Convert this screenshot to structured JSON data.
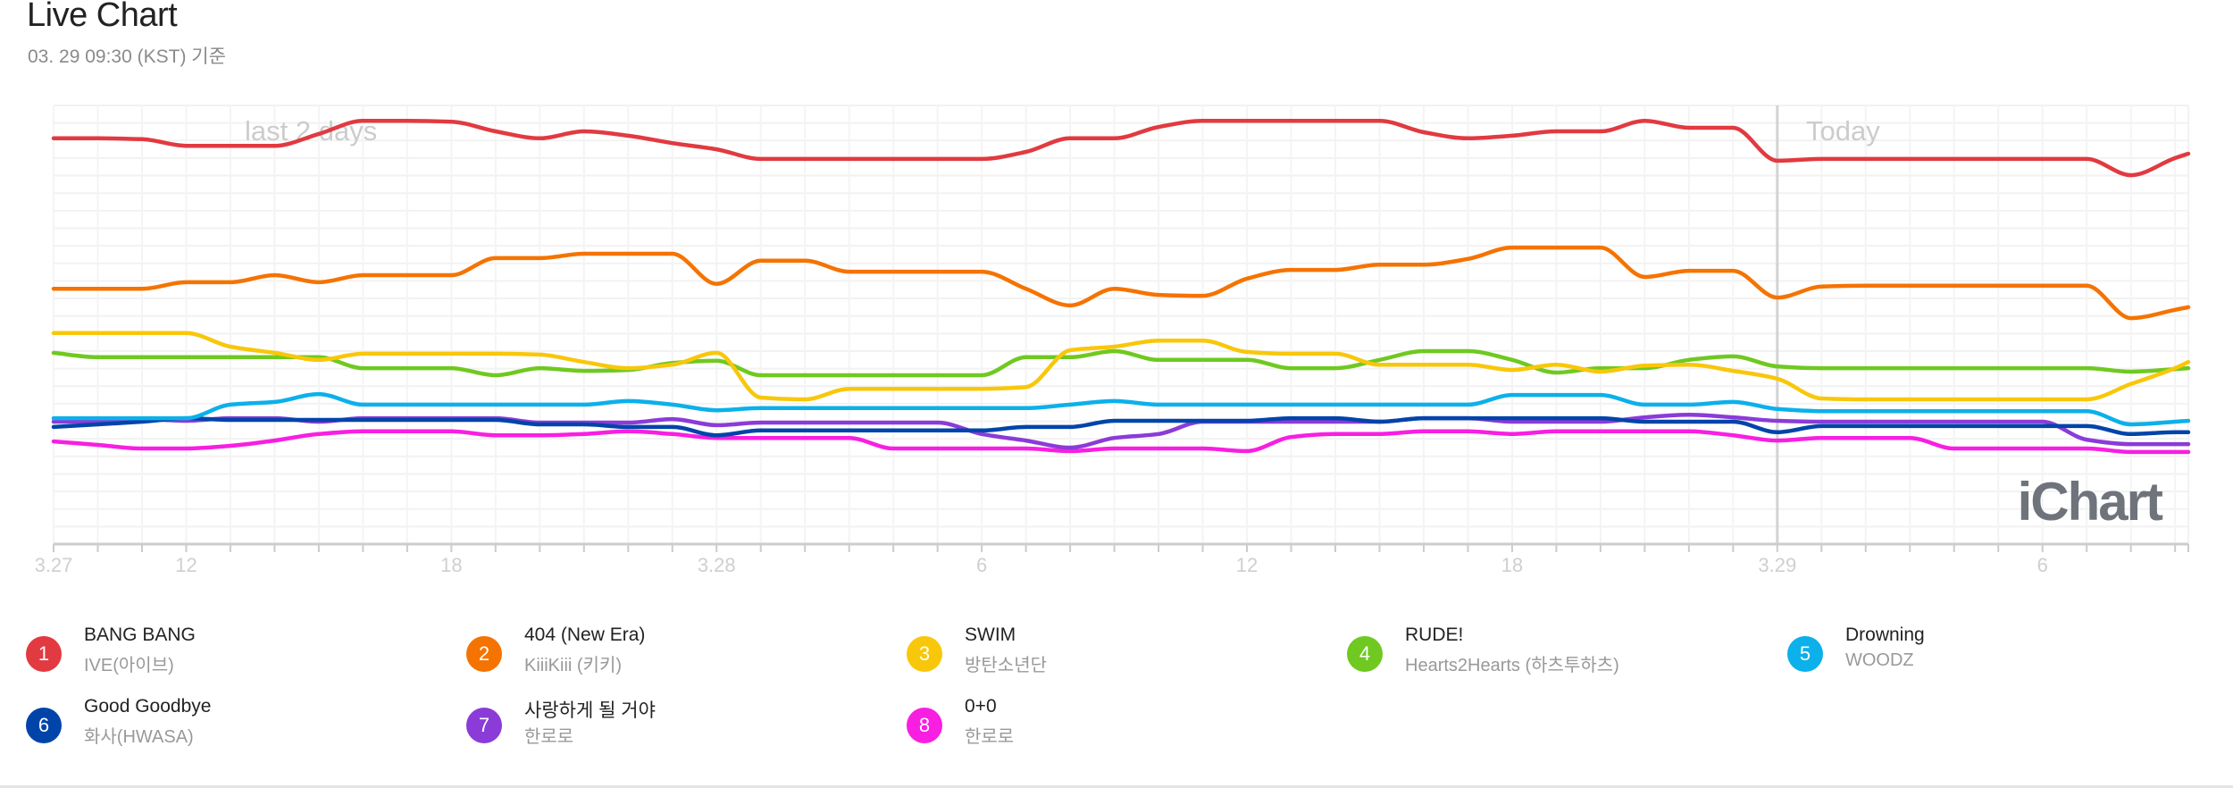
{
  "header": {
    "title": "Live Chart",
    "subtitle": "03. 29 09:30 (KST) 기준"
  },
  "logo": {
    "text": "iChart"
  },
  "chart_data": {
    "type": "line",
    "title": "Live Chart",
    "xlabel": "",
    "ylabel": "",
    "grid": true,
    "xlim": [
      0,
      48.3
    ],
    "ylim": [
      0,
      100
    ],
    "x": [
      0,
      1,
      2,
      3,
      4,
      5,
      6,
      7,
      8,
      9,
      10,
      11,
      12,
      13,
      14,
      15,
      16,
      17,
      18,
      19,
      20,
      21,
      22,
      23,
      24,
      25,
      26,
      27,
      28,
      29,
      30,
      31,
      32,
      33,
      34,
      35,
      36,
      37,
      38,
      39,
      40,
      41,
      42,
      43,
      44,
      45,
      46,
      47,
      48,
      48.3
    ],
    "xticks": [
      {
        "x": 0,
        "label": "3.27"
      },
      {
        "x": 3,
        "label": "12"
      },
      {
        "x": 9,
        "label": "18"
      },
      {
        "x": 15,
        "label": "3.28"
      },
      {
        "x": 21,
        "label": "6"
      },
      {
        "x": 27,
        "label": "12"
      },
      {
        "x": 33,
        "label": "18"
      },
      {
        "x": 39,
        "label": "3.29"
      },
      {
        "x": 45,
        "label": "6"
      }
    ],
    "annotations": [
      {
        "label": "last 2 days"
      },
      {
        "label": "Today",
        "x": 39
      }
    ],
    "legend_position": "bottom",
    "series": [
      {
        "rank": "1",
        "name": "BANG BANG",
        "artist": "IVE(아이브)",
        "color": "#e13a40",
        "values": [
          92.5,
          92.5,
          92.3,
          90.8,
          90.8,
          90.8,
          93.5,
          96.5,
          96.5,
          96.3,
          94.1,
          92.5,
          94.1,
          93.1,
          91.4,
          90.0,
          87.8,
          87.8,
          87.8,
          87.8,
          87.8,
          87.8,
          89.4,
          92.5,
          92.5,
          95.1,
          96.5,
          96.5,
          96.5,
          96.5,
          96.5,
          93.9,
          92.5,
          93.1,
          94.1,
          94.1,
          96.5,
          94.9,
          94.9,
          87.4,
          87.8,
          87.8,
          87.8,
          87.8,
          87.8,
          87.8,
          87.8,
          84.1,
          88.0,
          89.0
        ]
      },
      {
        "rank": "2",
        "name": "404 (New Era)",
        "artist": "KiiiKiii (키키)",
        "color": "#f57300",
        "values": [
          58.2,
          58.2,
          58.2,
          59.7,
          59.7,
          61.3,
          59.7,
          61.3,
          61.3,
          61.3,
          65.2,
          65.2,
          66.2,
          66.2,
          66.2,
          59.3,
          64.6,
          64.6,
          62.1,
          62.1,
          62.1,
          62.1,
          58.2,
          54.4,
          58.2,
          56.8,
          56.6,
          60.5,
          62.5,
          62.5,
          63.7,
          63.7,
          65.0,
          67.6,
          67.6,
          67.6,
          60.9,
          62.3,
          62.3,
          56.2,
          58.7,
          58.9,
          58.9,
          58.9,
          58.9,
          58.9,
          58.9,
          51.5,
          53.4,
          54.0
        ]
      },
      {
        "rank": "3",
        "name": "SWIM",
        "artist": "방탄소년단",
        "color": "#f8c70a",
        "values": [
          48.1,
          48.1,
          48.1,
          48.1,
          45.0,
          43.6,
          42.0,
          43.4,
          43.4,
          43.4,
          43.4,
          43.2,
          41.5,
          40.1,
          40.9,
          43.6,
          33.4,
          33.0,
          35.4,
          35.4,
          35.4,
          35.4,
          35.8,
          44.2,
          45.0,
          46.4,
          46.4,
          43.8,
          43.4,
          43.4,
          40.9,
          40.9,
          40.9,
          39.7,
          40.9,
          39.3,
          40.7,
          40.9,
          39.5,
          37.7,
          33.2,
          33.0,
          33.0,
          33.0,
          33.0,
          33.0,
          33.0,
          36.5,
          40.1,
          41.5
        ]
      },
      {
        "rank": "4",
        "name": "RUDE!",
        "artist": "Hearts2Hearts (하츠투하츠)",
        "color": "#6fc920",
        "values": [
          43.6,
          42.6,
          42.6,
          42.6,
          42.6,
          42.6,
          42.6,
          40.1,
          40.1,
          40.1,
          38.5,
          40.1,
          39.5,
          39.7,
          41.3,
          41.8,
          38.5,
          38.5,
          38.5,
          38.5,
          38.5,
          38.5,
          42.6,
          42.6,
          44.0,
          42.0,
          42.0,
          42.0,
          40.1,
          40.1,
          42.0,
          44.0,
          44.0,
          42.0,
          39.1,
          40.1,
          40.1,
          42.0,
          42.8,
          40.5,
          40.1,
          40.1,
          40.1,
          40.1,
          40.1,
          40.1,
          40.1,
          39.3,
          39.9,
          40.1
        ]
      },
      {
        "rank": "5",
        "name": "Drowning",
        "artist": "WOODZ",
        "color": "#0cb0ea",
        "values": [
          28.7,
          28.7,
          28.7,
          28.7,
          31.8,
          32.4,
          34.2,
          31.8,
          31.8,
          31.8,
          31.8,
          31.8,
          31.8,
          32.6,
          31.8,
          30.5,
          31.0,
          31.0,
          31.0,
          31.0,
          31.0,
          31.0,
          31.0,
          31.8,
          32.6,
          31.8,
          31.8,
          31.8,
          31.8,
          31.8,
          31.8,
          31.8,
          31.8,
          34.0,
          34.0,
          34.0,
          31.8,
          31.8,
          32.4,
          30.8,
          30.3,
          30.3,
          30.3,
          30.3,
          30.3,
          30.3,
          30.3,
          27.3,
          27.9,
          28.1
        ]
      },
      {
        "rank": "6",
        "name": "Good Goodbye",
        "artist": "화사(HWASA)",
        "color": "#0044aa",
        "values": [
          26.7,
          27.3,
          27.9,
          28.7,
          28.3,
          28.3,
          28.3,
          28.3,
          28.3,
          28.3,
          28.3,
          27.3,
          27.3,
          26.7,
          26.7,
          24.8,
          25.9,
          25.9,
          25.9,
          25.9,
          25.9,
          25.9,
          26.7,
          26.7,
          28.1,
          28.1,
          28.1,
          28.1,
          28.7,
          28.7,
          27.9,
          28.7,
          28.7,
          28.7,
          28.7,
          28.7,
          27.9,
          27.9,
          27.9,
          25.5,
          26.9,
          26.9,
          26.9,
          26.9,
          26.9,
          26.9,
          26.9,
          25.1,
          25.5,
          25.5
        ]
      },
      {
        "rank": "7",
        "name": "사랑하게 될 거야",
        "artist": "한로로",
        "color": "#8b3bd8",
        "values": [
          27.9,
          27.9,
          28.5,
          28.1,
          28.7,
          28.7,
          27.9,
          28.7,
          28.7,
          28.7,
          28.7,
          27.7,
          27.7,
          27.7,
          28.5,
          27.1,
          27.7,
          27.7,
          27.7,
          27.7,
          27.7,
          25.1,
          23.6,
          22.0,
          24.2,
          25.1,
          27.9,
          27.9,
          27.9,
          27.9,
          27.9,
          28.7,
          28.7,
          27.9,
          27.9,
          27.9,
          28.9,
          29.5,
          28.9,
          28.1,
          27.9,
          27.9,
          27.9,
          27.9,
          27.9,
          27.9,
          23.8,
          22.8,
          22.8,
          22.8
        ]
      },
      {
        "rank": "8",
        "name": "0+0",
        "artist": "한로로",
        "color": "#f81ee2",
        "values": [
          23.4,
          22.6,
          21.8,
          21.8,
          22.4,
          23.6,
          25.1,
          25.7,
          25.7,
          25.7,
          24.8,
          24.8,
          25.1,
          25.7,
          25.1,
          24.2,
          24.2,
          24.2,
          24.2,
          21.8,
          21.8,
          21.8,
          21.8,
          21.2,
          21.8,
          21.8,
          21.8,
          21.2,
          24.4,
          25.1,
          25.1,
          25.7,
          25.7,
          25.1,
          25.7,
          25.7,
          25.7,
          25.7,
          24.8,
          23.6,
          24.2,
          24.2,
          24.2,
          21.8,
          21.8,
          21.8,
          21.8,
          21.0,
          21.0,
          21.0
        ]
      }
    ]
  }
}
